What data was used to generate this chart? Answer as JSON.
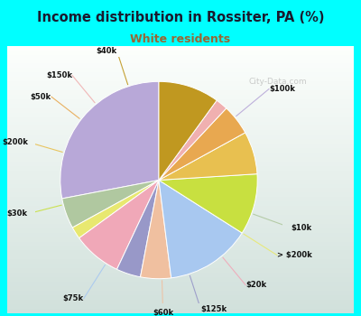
{
  "title": "Income distribution in Rossiter, PA (%)",
  "subtitle": "White residents",
  "title_color": "#1a1a2e",
  "subtitle_color": "#996633",
  "background_outer": "#00ffff",
  "background_inner_tl": "#e0f0e8",
  "background_inner_br": "#f8fffe",
  "watermark": "City-Data.com",
  "labels": [
    "$100k",
    "$10k",
    "> $200k",
    "$20k",
    "$125k",
    "$60k",
    "$75k",
    "$30k",
    "$200k",
    "$50k",
    "$150k",
    "$40k"
  ],
  "values": [
    28,
    5,
    2,
    8,
    4,
    5,
    14,
    10,
    7,
    5,
    2,
    10
  ],
  "colors": [
    "#b8a8d8",
    "#b0c8a0",
    "#e8e870",
    "#f0a8b8",
    "#9898c8",
    "#f0c0a0",
    "#a8c8f0",
    "#c8e040",
    "#e8c050",
    "#e8a850",
    "#f0b0b0",
    "#c09820"
  ],
  "startangle": 90
}
